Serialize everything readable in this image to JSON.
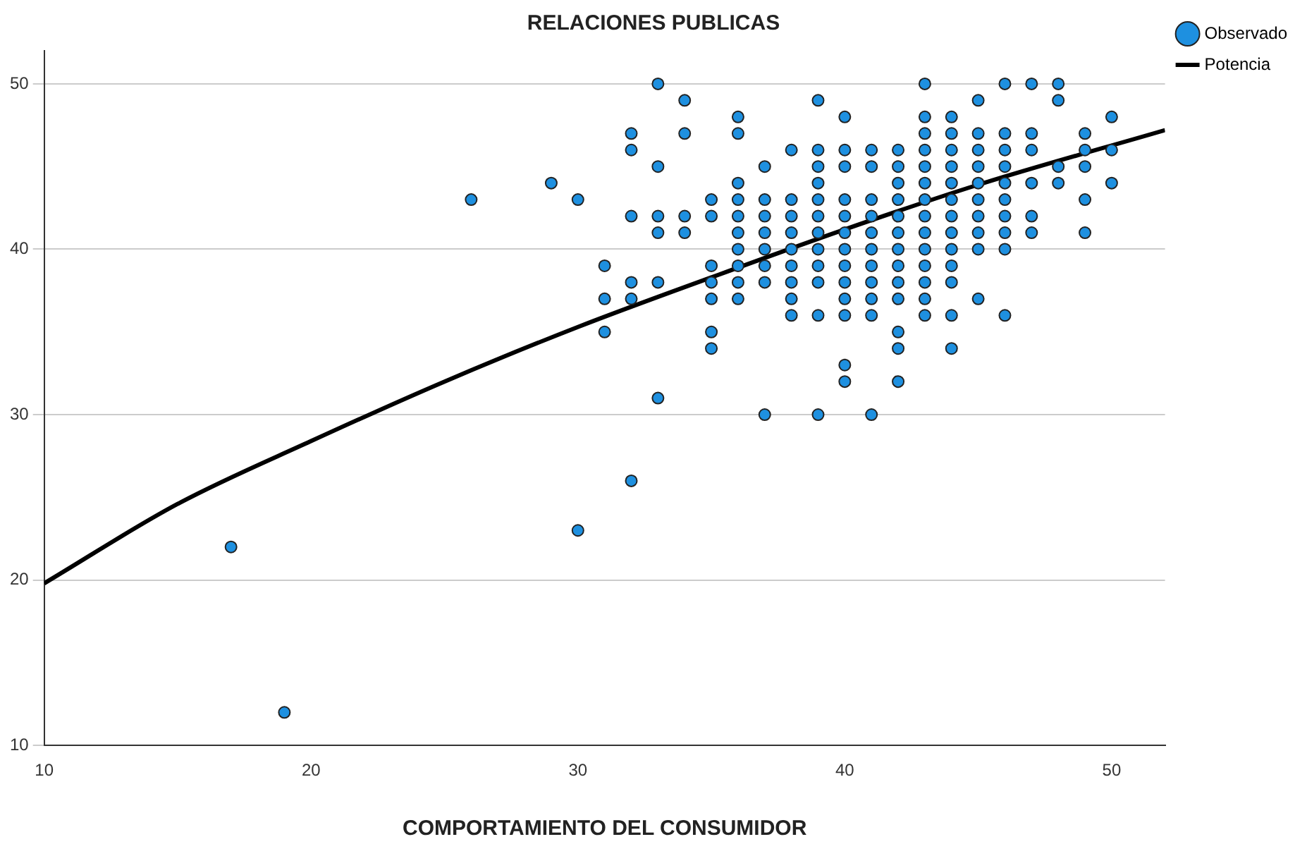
{
  "chart_data": {
    "type": "scatter",
    "title": "RELACIONES PUBLICAS",
    "xlabel": "COMPORTAMIENTO DEL CONSUMIDOR",
    "xlim": [
      10,
      52
    ],
    "xticks": [
      10,
      20,
      30,
      40,
      50
    ],
    "ylim": [
      10,
      52
    ],
    "yticks": [
      10,
      20,
      30,
      40,
      50
    ],
    "grid": "y",
    "legend": "top right",
    "marker": "circle",
    "series": [
      {
        "name": "Observado",
        "color": "#1e90e0",
        "x": [
          17,
          19,
          26,
          29,
          30,
          30,
          31,
          31,
          31,
          32,
          32,
          32,
          32,
          32,
          32,
          33,
          33,
          33,
          33,
          33,
          33,
          34,
          34,
          34,
          34,
          35,
          35,
          35,
          35,
          35,
          35,
          35,
          36,
          36,
          36,
          36,
          36,
          36,
          36,
          36,
          36,
          36,
          37,
          37,
          37,
          37,
          37,
          37,
          37,
          37,
          38,
          38,
          38,
          38,
          38,
          38,
          38,
          38,
          38,
          39,
          39,
          39,
          39,
          39,
          39,
          39,
          39,
          39,
          39,
          39,
          39,
          40,
          40,
          40,
          40,
          40,
          40,
          40,
          40,
          40,
          40,
          40,
          40,
          40,
          41,
          41,
          41,
          41,
          41,
          41,
          41,
          41,
          41,
          41,
          41,
          42,
          42,
          42,
          42,
          42,
          42,
          42,
          42,
          42,
          42,
          42,
          42,
          42,
          43,
          43,
          43,
          43,
          43,
          43,
          43,
          43,
          43,
          43,
          43,
          43,
          43,
          43,
          44,
          44,
          44,
          44,
          44,
          44,
          44,
          44,
          44,
          44,
          44,
          44,
          44,
          45,
          45,
          45,
          45,
          45,
          45,
          45,
          45,
          45,
          45,
          46,
          46,
          46,
          46,
          46,
          46,
          46,
          46,
          46,
          46,
          47,
          47,
          47,
          47,
          47,
          47,
          48,
          48,
          48,
          48,
          49,
          49,
          49,
          49,
          49,
          50,
          50,
          50
        ],
        "values": [
          22,
          12,
          43,
          44,
          43,
          23,
          39,
          37,
          35,
          47,
          46,
          42,
          38,
          37,
          26,
          50,
          45,
          42,
          41,
          38,
          31,
          49,
          47,
          42,
          41,
          43,
          42,
          39,
          38,
          37,
          35,
          34,
          48,
          47,
          44,
          43,
          42,
          41,
          40,
          39,
          38,
          37,
          45,
          43,
          42,
          41,
          40,
          39,
          38,
          30,
          46,
          43,
          42,
          41,
          40,
          39,
          38,
          37,
          36,
          49,
          46,
          45,
          44,
          43,
          42,
          41,
          40,
          39,
          38,
          36,
          30,
          48,
          46,
          45,
          43,
          42,
          41,
          40,
          39,
          38,
          37,
          36,
          33,
          32,
          46,
          45,
          43,
          42,
          41,
          40,
          39,
          38,
          37,
          36,
          30,
          46,
          45,
          44,
          43,
          42,
          41,
          40,
          39,
          38,
          37,
          35,
          34,
          32,
          50,
          48,
          47,
          46,
          45,
          44,
          43,
          42,
          41,
          40,
          39,
          38,
          37,
          36,
          48,
          47,
          46,
          45,
          44,
          43,
          42,
          41,
          40,
          39,
          38,
          36,
          34,
          49,
          47,
          46,
          45,
          44,
          43,
          42,
          41,
          40,
          37,
          50,
          47,
          46,
          45,
          44,
          43,
          42,
          41,
          40,
          36,
          50,
          47,
          46,
          44,
          42,
          41,
          50,
          49,
          45,
          44,
          47,
          46,
          45,
          43,
          41,
          48,
          46,
          44
        ]
      },
      {
        "name": "Potencia",
        "color": "#000000",
        "type": "line",
        "marker": "none",
        "x": [
          10,
          15,
          20,
          25,
          30,
          35,
          40,
          45,
          52
        ],
        "values": [
          19.8,
          24.6,
          28.4,
          32.0,
          35.3,
          38.3,
          41.2,
          43.9,
          47.2
        ]
      }
    ]
  }
}
